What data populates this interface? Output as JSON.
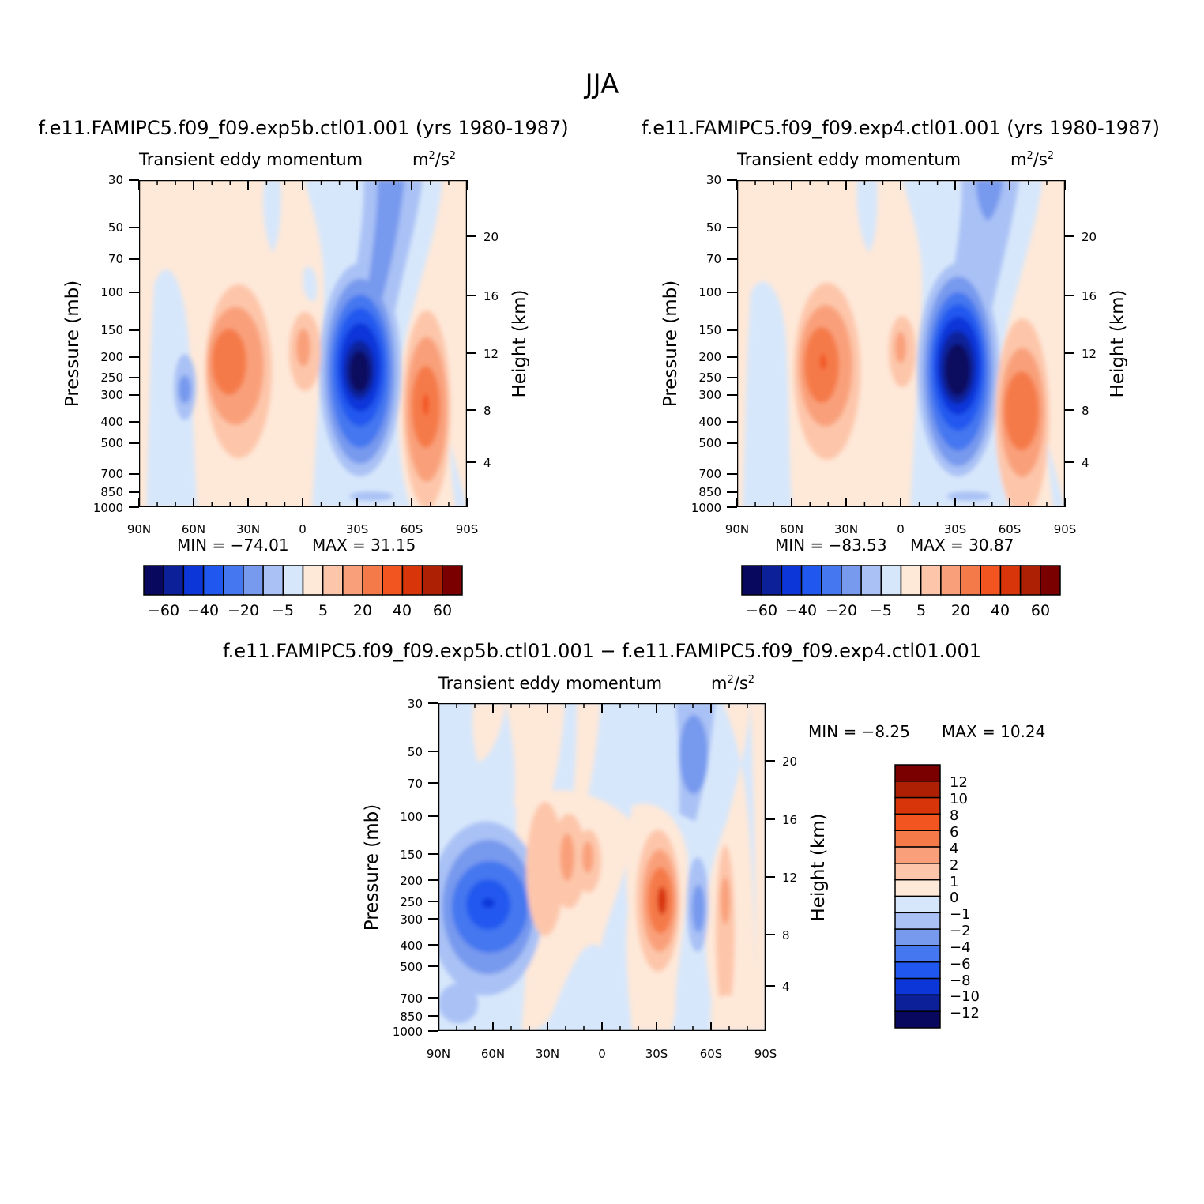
{
  "page": {
    "title": "JJA"
  },
  "panels": [
    {
      "id": "top-left",
      "case_title": "f.e11.FAMIPC5.f09_f09.exp5b.ctl01.001 (yrs 1980-1987)",
      "var_label": "Transient eddy momentum",
      "units_base": "m",
      "units_exp1": "2",
      "units_mid": "/s",
      "units_exp2": "2",
      "ylabel": "Pressure (mb)",
      "ylabel_right": "Height (km)",
      "min_label": "MIN = -74.01",
      "max_label": "MAX = 31.15"
    },
    {
      "id": "top-right",
      "case_title": "f.e11.FAMIPC5.f09_f09.exp4.ctl01.001 (yrs 1980-1987)",
      "var_label": "Transient eddy momentum",
      "units_base": "m",
      "units_exp1": "2",
      "units_mid": "/s",
      "units_exp2": "2",
      "ylabel": "Pressure (mb)",
      "ylabel_right": "Height (km)",
      "min_label": "MIN = -83.53",
      "max_label": "MAX = 30.87"
    },
    {
      "id": "bottom",
      "case_title": "f.e11.FAMIPC5.f09_f09.exp5b.ctl01.001 - f.e11.FAMIPC5.f09_f09.exp4.ctl01.001",
      "var_label": "Transient eddy momentum",
      "units_base": "m",
      "units_exp1": "2",
      "units_mid": "/s",
      "units_exp2": "2",
      "ylabel": "Pressure (mb)",
      "ylabel_right": "Height (km)",
      "min_label": "MIN = -8.25",
      "max_label": "MAX = 10.24"
    }
  ],
  "chart_data": [
    {
      "type": "heatmap",
      "title": "f.e11.FAMIPC5.f09_f09.exp5b.ctl01.001 (yrs 1980-1987)",
      "variable": "Transient eddy momentum",
      "xlabel": "",
      "ylabel": "Pressure (mb)",
      "ylabel_right": "Height (km)",
      "x_ticks": [
        "90N",
        "60N",
        "30N",
        "0",
        "30S",
        "60S",
        "90S"
      ],
      "y_ticks": [
        "30",
        "50",
        "70",
        "100",
        "150",
        "200",
        "250",
        "300",
        "400",
        "500",
        "700",
        "850",
        "1000"
      ],
      "y_ticks_right": [
        "20",
        "16",
        "12",
        "8",
        "4"
      ],
      "min": -74.01,
      "max": 31.15,
      "colorbar_labels": [
        "-60",
        "-40",
        "-20",
        "-5",
        "5",
        "20",
        "40",
        "60"
      ],
      "features": [
        {
          "lat": -30,
          "pressure": 250,
          "value": -74
        },
        {
          "lat": 42,
          "pressure": 200,
          "value": 25
        },
        {
          "lat": -68,
          "pressure": 350,
          "value": 31
        },
        {
          "lat": 65,
          "pressure": 300,
          "value": -15
        },
        {
          "lat": 2,
          "pressure": 180,
          "value": 12
        }
      ]
    },
    {
      "type": "heatmap",
      "title": "f.e11.FAMIPC5.f09_f09.exp4.ctl01.001 (yrs 1980-1987)",
      "variable": "Transient eddy momentum",
      "xlabel": "",
      "ylabel": "Pressure (mb)",
      "ylabel_right": "Height (km)",
      "x_ticks": [
        "90N",
        "60N",
        "30N",
        "0",
        "30S",
        "60S",
        "90S"
      ],
      "y_ticks": [
        "30",
        "50",
        "70",
        "100",
        "150",
        "200",
        "250",
        "300",
        "400",
        "500",
        "700",
        "850",
        "1000"
      ],
      "y_ticks_right": [
        "20",
        "16",
        "12",
        "8",
        "4"
      ],
      "min": -83.53,
      "max": 30.87,
      "colorbar_labels": [
        "-60",
        "-40",
        "-20",
        "-5",
        "5",
        "20",
        "40",
        "60"
      ],
      "features": [
        {
          "lat": -30,
          "pressure": 250,
          "value": -83
        },
        {
          "lat": 42,
          "pressure": 200,
          "value": 30
        },
        {
          "lat": -68,
          "pressure": 350,
          "value": 25
        },
        {
          "lat": 2,
          "pressure": 180,
          "value": 10
        }
      ]
    },
    {
      "type": "heatmap",
      "title": "f.e11.FAMIPC5.f09_f09.exp5b.ctl01.001 - f.e11.FAMIPC5.f09_f09.exp4.ctl01.001",
      "variable": "Transient eddy momentum",
      "xlabel": "",
      "ylabel": "Pressure (mb)",
      "ylabel_right": "Height (km)",
      "x_ticks": [
        "90N",
        "60N",
        "30N",
        "0",
        "30S",
        "60S",
        "90S"
      ],
      "y_ticks": [
        "30",
        "50",
        "70",
        "100",
        "150",
        "200",
        "250",
        "300",
        "400",
        "500",
        "700",
        "850",
        "1000"
      ],
      "y_ticks_right": [
        "20",
        "16",
        "12",
        "8",
        "4"
      ],
      "min": -8.25,
      "max": 10.24,
      "colorbar_labels": [
        "12",
        "10",
        "8",
        "6",
        "4",
        "2",
        "1",
        "0",
        "-1",
        "-2",
        "-4",
        "-6",
        "-8",
        "-10",
        "-12"
      ],
      "features": [
        {
          "lat": 60,
          "pressure": 260,
          "value": -8
        },
        {
          "lat": -33,
          "pressure": 250,
          "value": 10
        },
        {
          "lat": -50,
          "pressure": 250,
          "value": -4
        },
        {
          "lat": -70,
          "pressure": 400,
          "value": 4
        },
        {
          "lat": 30,
          "pressure": 220,
          "value": 3
        }
      ]
    }
  ],
  "palettes": {
    "diverging": [
      "#08085e",
      "#0b2099",
      "#0d36d9",
      "#2058ef",
      "#4477f0",
      "#7799ee",
      "#a9c1f5",
      "#d7e7fb",
      "#fee8d8",
      "#fdc6aa",
      "#f9a07a",
      "#f57a4a",
      "#f35520",
      "#d8360a",
      "#ae2004",
      "#7a0000"
    ]
  }
}
